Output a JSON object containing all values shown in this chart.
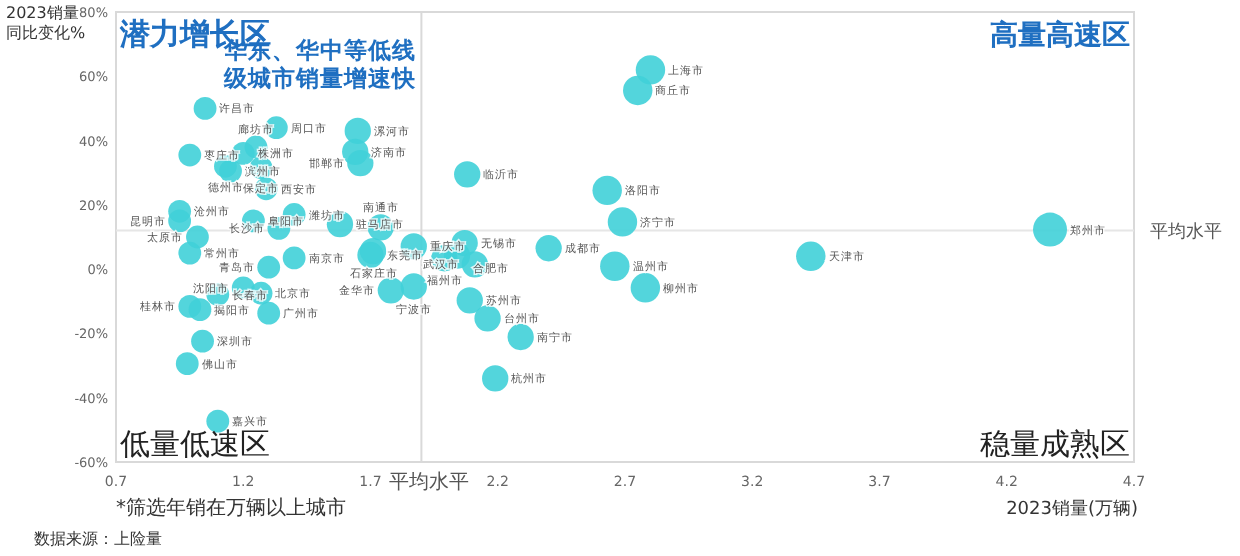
{
  "chart_data": {
    "type": "bubble",
    "xlabel": "2023销量(万辆)",
    "ylabel": "2023销量同比变化%",
    "xlim": [
      0.7,
      4.7
    ],
    "xticks": [
      0.7,
      1.2,
      1.7,
      2.2,
      2.7,
      3.2,
      3.7,
      4.2,
      4.7
    ],
    "ylim": [
      -60,
      80
    ],
    "yticks": [
      {
        "value": -60,
        "label": "-60%"
      },
      {
        "value": -40,
        "label": "-40%"
      },
      {
        "value": -20,
        "label": "-20%"
      },
      {
        "value": 0,
        "label": "0%"
      },
      {
        "value": 20,
        "label": "20%"
      },
      {
        "value": 40,
        "label": "40%"
      },
      {
        "value": 60,
        "label": "60%"
      },
      {
        "value": 80,
        "label": "80%"
      }
    ],
    "grid": false,
    "series": [
      {
        "color": "#40d0d8",
        "x": [
          1.05,
          1.33,
          1.65,
          1.64,
          1.66,
          0.99,
          1.2,
          1.25,
          1.13,
          1.15,
          1.27,
          1.29,
          0.95,
          0.95,
          1.4,
          1.58,
          1.74,
          1.24,
          1.34,
          1.02,
          0.99,
          1.4,
          1.3,
          1.7,
          1.71,
          1.87,
          2.07,
          1.99,
          2.04,
          2.11,
          1.78,
          1.87,
          1.1,
          1.2,
          1.27,
          0.99,
          1.03,
          1.3,
          1.04,
          0.98,
          1.1,
          2.8,
          2.75,
          2.08,
          2.63,
          2.69,
          2.4,
          2.66,
          2.78,
          2.09,
          2.16,
          2.29,
          2.19,
          3.43,
          4.37
        ],
        "values": [
          50,
          44,
          43,
          36.5,
          33,
          35.5,
          36,
          38,
          32,
          30.5,
          31.5,
          25,
          18,
          15,
          17,
          14,
          13,
          15,
          12.7,
          10,
          5,
          3.5,
          0.6,
          4.4,
          5.6,
          7.1,
          8.1,
          3.4,
          4.2,
          1.5,
          -6.6,
          -5.4,
          -7.9,
          -5.8,
          -7.5,
          -11.6,
          -12.6,
          -13.7,
          -22.4,
          -29.4,
          -47.3,
          62,
          55.6,
          29.5,
          24.5,
          14.7,
          6.5,
          0.9,
          -5.8,
          -9.7,
          -15.3,
          -21.1,
          -34,
          4,
          12.3
        ],
        "sizes": [
          0.45,
          0.45,
          0.6,
          0.6,
          0.6,
          0.45,
          0.45,
          0.45,
          0.45,
          0.45,
          0.45,
          0.45,
          0.45,
          0.45,
          0.45,
          0.6,
          0.6,
          0.45,
          0.45,
          0.45,
          0.45,
          0.45,
          0.45,
          0.6,
          0.6,
          0.6,
          0.6,
          0.6,
          0.6,
          0.6,
          0.6,
          0.6,
          0.45,
          0.45,
          0.45,
          0.45,
          0.45,
          0.45,
          0.45,
          0.45,
          0.45,
          0.75,
          0.75,
          0.6,
          0.75,
          0.75,
          0.6,
          0.75,
          0.75,
          0.6,
          0.6,
          0.6,
          0.6,
          0.75,
          1
        ],
        "value_labels": [
          "许昌市",
          "周口市",
          "漯河市",
          "济南市",
          "邯郸市",
          "枣庄市",
          "株洲市",
          "廊坊市",
          "德州市",
          "滨州市",
          "保定市",
          "西安市",
          "沧州市",
          "昆明市",
          "潍坊市",
          "驻马店市",
          "南通市",
          "阜阳市",
          "长沙市",
          "太原市",
          "常州市",
          "南京市",
          "青岛市",
          "东莞市",
          "石家庄市",
          "重庆市",
          "无锡市",
          "福州市",
          "合肥市",
          "武汉市",
          "金华市",
          "宁波市",
          "长春市",
          "沈阳市",
          "北京市",
          "桂林市",
          "揭阳市",
          "广州市",
          "深圳市",
          "佛山市",
          "嘉兴市",
          "上海市",
          "商丘市",
          "临沂市",
          "洛阳市",
          "济宁市",
          "成都市",
          "温州市",
          "柳州市",
          "苏州市",
          "台州市",
          "南宁市",
          "杭州市",
          "天津市",
          "郑州市"
        ]
      }
    ],
    "ref_lines": [
      {
        "axis": "y",
        "value": 12,
        "label": "平均水平",
        "color": "#e6e6e6"
      },
      {
        "axis": "x",
        "value": 1.9,
        "label": "平均水平",
        "color": "#d9d9d9"
      }
    ],
    "annotations": [
      "潜力增长区",
      "华东、华中等低线级城市销量增速快",
      "高量高速区",
      "低量低速区",
      "稳量成熟区",
      "*筛选年销在万辆以上城市",
      "数据来源：上险量"
    ]
  }
}
